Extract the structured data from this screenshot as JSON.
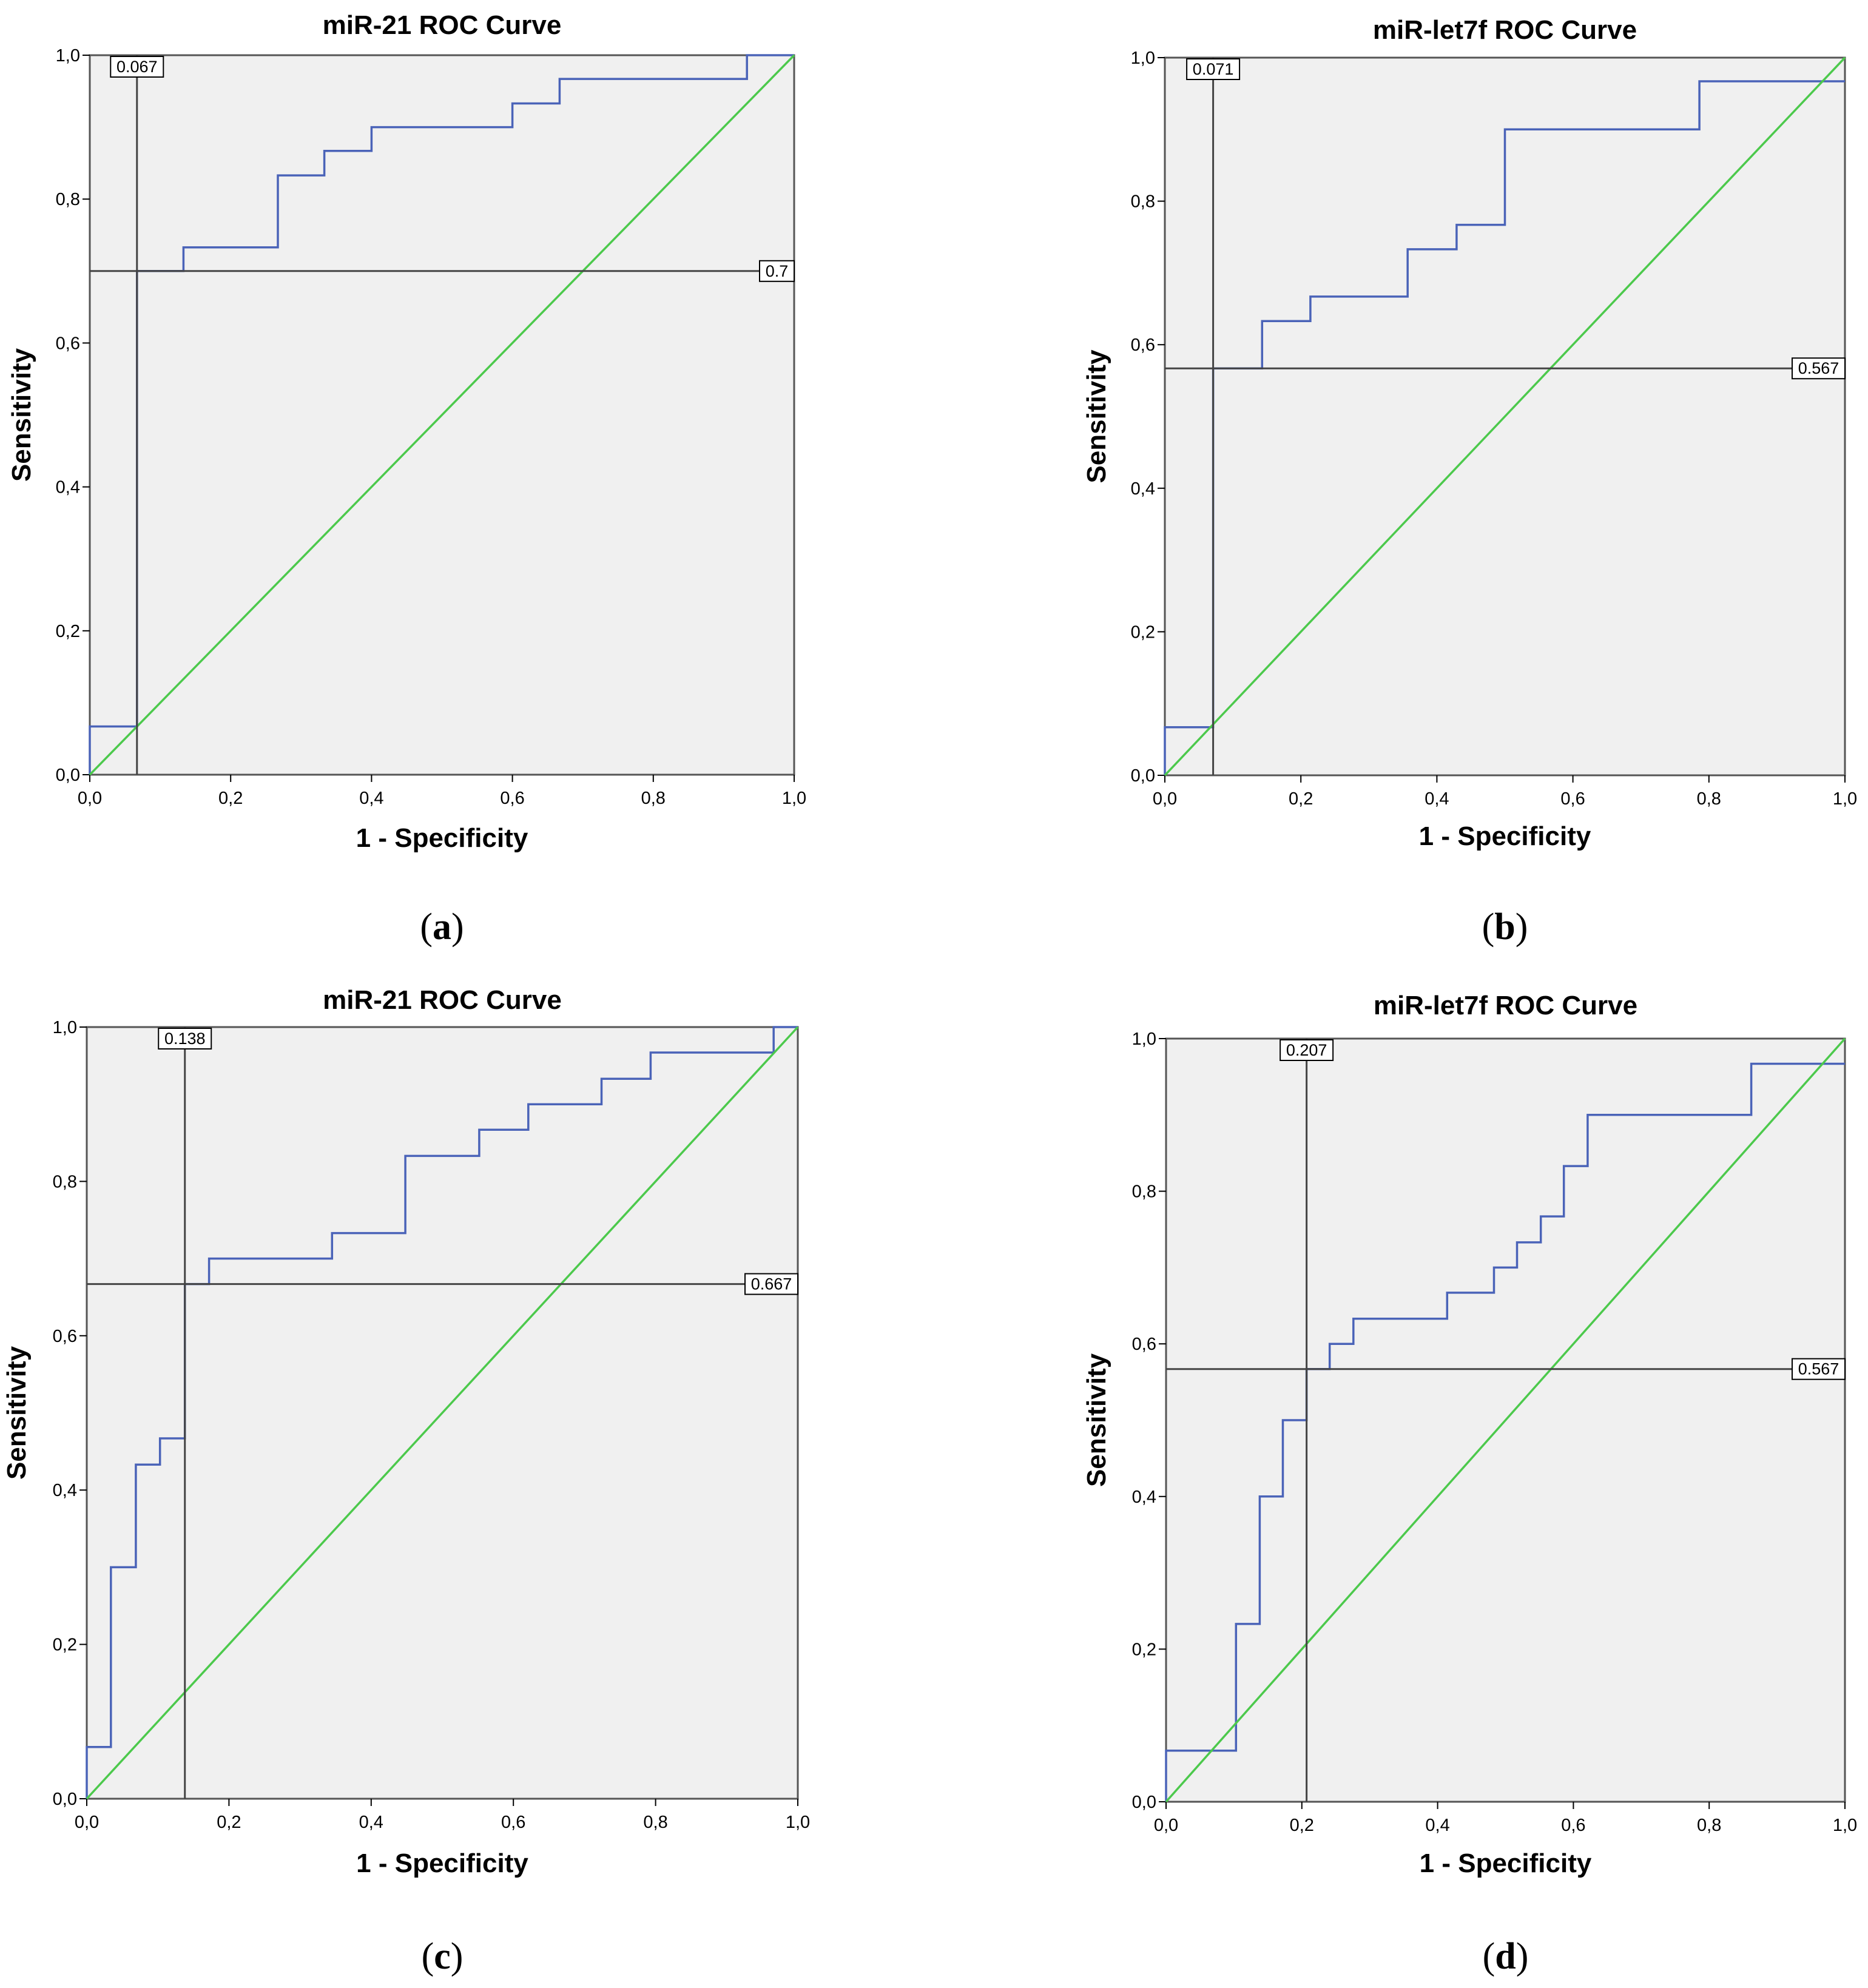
{
  "chart_data": [
    {
      "type": "line",
      "panel": "(a)",
      "caption_letter": "a",
      "title": "miR-21 ROC Curve",
      "xlabel": "1 - Specificity",
      "ylabel": "Sensitivity",
      "xlim": [
        0,
        1
      ],
      "ylim": [
        0,
        1
      ],
      "x_ticks": [
        "0,0",
        "0,2",
        "0,4",
        "0,6",
        "0,8",
        "1,0"
      ],
      "y_ticks": [
        "0,0",
        "0,2",
        "0,4",
        "0,6",
        "0,8",
        "1,0"
      ],
      "series": [
        {
          "name": "ROC",
          "color": "#4a63b8",
          "x": [
            0,
            0,
            0.067,
            0.067,
            0.133,
            0.133,
            0.267,
            0.267,
            0.333,
            0.333,
            0.4,
            0.4,
            0.6,
            0.6,
            0.667,
            0.667,
            0.933,
            0.933,
            1
          ],
          "y": [
            0,
            0.067,
            0.067,
            0.7,
            0.7,
            0.733,
            0.733,
            0.833,
            0.833,
            0.867,
            0.867,
            0.9,
            0.9,
            0.933,
            0.933,
            0.967,
            0.967,
            1,
            1
          ]
        },
        {
          "name": "Reference Line",
          "color": "#4cc94c",
          "x": [
            0,
            1
          ],
          "y": [
            0,
            1
          ]
        }
      ],
      "cutoff": {
        "x": 0.067,
        "y": 0.7,
        "x_label": "0.067",
        "y_label": "0.7"
      }
    },
    {
      "type": "line",
      "panel": "(b)",
      "caption_letter": "b",
      "title": "miR-let7f ROC Curve",
      "xlabel": "1 - Specificity",
      "ylabel": "Sensitivity",
      "xlim": [
        0,
        1
      ],
      "ylim": [
        0,
        1
      ],
      "x_ticks": [
        "0,0",
        "0,2",
        "0,4",
        "0,6",
        "0,8",
        "1,0"
      ],
      "y_ticks": [
        "0,0",
        "0,2",
        "0,4",
        "0,6",
        "0,8",
        "1,0"
      ],
      "series": [
        {
          "name": "ROC",
          "color": "#4a63b8",
          "x": [
            0,
            0,
            0.071,
            0.071,
            0.143,
            0.143,
            0.214,
            0.214,
            0.357,
            0.357,
            0.429,
            0.429,
            0.5,
            0.5,
            0.786,
            0.786,
            1
          ],
          "y": [
            0,
            0.067,
            0.067,
            0.567,
            0.567,
            0.633,
            0.633,
            0.667,
            0.667,
            0.733,
            0.733,
            0.767,
            0.767,
            0.9,
            0.9,
            0.967,
            0.967
          ]
        },
        {
          "name": "Reference Line",
          "color": "#4cc94c",
          "x": [
            0,
            1
          ],
          "y": [
            0,
            1
          ]
        }
      ],
      "cutoff": {
        "x": 0.071,
        "y": 0.567,
        "x_label": "0.071",
        "y_label": "0.567"
      }
    },
    {
      "type": "line",
      "panel": "(c)",
      "caption_letter": "c",
      "title": "miR-21 ROC Curve",
      "xlabel": "1 - Specificity",
      "ylabel": "Sensitivity",
      "xlim": [
        0,
        1
      ],
      "ylim": [
        0,
        1
      ],
      "x_ticks": [
        "0,0",
        "0,2",
        "0,4",
        "0,6",
        "0,8",
        "1,0"
      ],
      "y_ticks": [
        "0,0",
        "0,2",
        "0,4",
        "0,6",
        "0,8",
        "1,0"
      ],
      "series": [
        {
          "name": "ROC",
          "color": "#4a63b8",
          "x": [
            0,
            0,
            0.034,
            0.034,
            0.069,
            0.069,
            0.103,
            0.103,
            0.138,
            0.138,
            0.172,
            0.172,
            0.345,
            0.345,
            0.448,
            0.448,
            0.552,
            0.552,
            0.621,
            0.621,
            0.724,
            0.724,
            0.793,
            0.793,
            0.966,
            0.966,
            1
          ],
          "y": [
            0,
            0.067,
            0.067,
            0.3,
            0.3,
            0.433,
            0.433,
            0.467,
            0.467,
            0.667,
            0.667,
            0.7,
            0.7,
            0.733,
            0.733,
            0.833,
            0.833,
            0.867,
            0.867,
            0.9,
            0.9,
            0.933,
            0.933,
            0.967,
            0.967,
            1,
            1
          ]
        },
        {
          "name": "Reference Line",
          "color": "#4cc94c",
          "x": [
            0,
            1
          ],
          "y": [
            0,
            1
          ]
        }
      ],
      "cutoff": {
        "x": 0.138,
        "y": 0.667,
        "x_label": "0.138",
        "y_label": "0.667"
      }
    },
    {
      "type": "line",
      "panel": "(d)",
      "caption_letter": "d",
      "title": "miR-let7f ROC Curve",
      "xlabel": "1 - Specificity",
      "ylabel": "Sensitivity",
      "xlim": [
        0,
        1
      ],
      "ylim": [
        0,
        1
      ],
      "x_ticks": [
        "0,0",
        "0,2",
        "0,4",
        "0,6",
        "0,8",
        "1,0"
      ],
      "y_ticks": [
        "0,0",
        "0,2",
        "0,4",
        "0,6",
        "0,8",
        "1,0"
      ],
      "series": [
        {
          "name": "ROC",
          "color": "#4a63b8",
          "x": [
            0,
            0,
            0.103,
            0.103,
            0.138,
            0.138,
            0.172,
            0.172,
            0.207,
            0.207,
            0.241,
            0.241,
            0.276,
            0.276,
            0.414,
            0.414,
            0.483,
            0.483,
            0.517,
            0.517,
            0.552,
            0.552,
            0.586,
            0.586,
            0.621,
            0.621,
            0.862,
            0.862,
            1
          ],
          "y": [
            0,
            0.067,
            0.067,
            0.233,
            0.233,
            0.4,
            0.4,
            0.5,
            0.5,
            0.567,
            0.567,
            0.6,
            0.6,
            0.633,
            0.633,
            0.667,
            0.667,
            0.7,
            0.7,
            0.733,
            0.733,
            0.767,
            0.767,
            0.833,
            0.833,
            0.9,
            0.9,
            0.967,
            0.967
          ]
        },
        {
          "name": "Reference Line",
          "color": "#4cc94c",
          "x": [
            0,
            1
          ],
          "y": [
            0,
            1
          ]
        }
      ],
      "cutoff": {
        "x": 0.207,
        "y": 0.567,
        "x_label": "0.207",
        "y_label": "0.567"
      }
    }
  ],
  "colors": {
    "plot_background": "#f0f0f0",
    "frame": "#555555",
    "cutoff_line": "#444444"
  }
}
